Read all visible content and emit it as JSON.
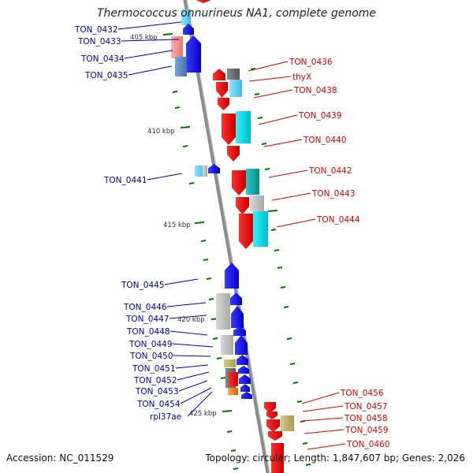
{
  "title": "Thermococcus onnurineus NA1, complete genome",
  "accession": "Accession: NC_011529",
  "topology": "Topology: circular; Length: 1,847,607 bp; Genes: 2,026",
  "colors": {
    "left_label": "#0000aa",
    "right_label": "#dd0000",
    "backbone": "#8c8c8c",
    "tick": "#007700",
    "forward_gene": "#0000ee",
    "reverse_gene": "#ee0000"
  },
  "scale_labels": [
    "405 kbp",
    "410 kbp",
    "415 kbp",
    "420 kbp",
    "425 kbp"
  ],
  "left_genes": [
    "TON_0432",
    "TON_0433",
    "TON_0434",
    "TON_0435",
    "TON_0441",
    "TON_0445",
    "TON_0446",
    "TON_0447",
    "TON_0448",
    "TON_0449",
    "TON_0450",
    "TON_0451",
    "TON_0452",
    "TON_0453",
    "TON_0454",
    "rpl37ae"
  ],
  "right_genes": [
    "TON_0436",
    "thyX",
    "TON_0438",
    "TON_0439",
    "TON_0440",
    "TON_0442",
    "TON_0443",
    "TON_0444",
    "TON_0456",
    "TON_0457",
    "TON_0458",
    "TON_0459",
    "TON_0460"
  ]
}
